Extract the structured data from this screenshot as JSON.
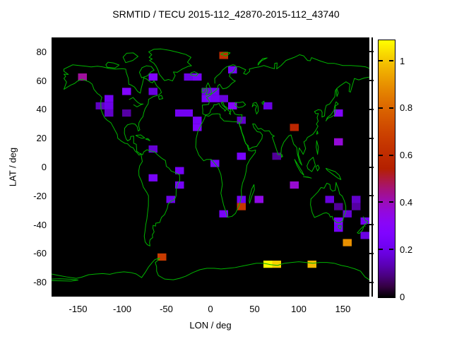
{
  "title": "SRMTID / TECU 2015-112_42870-2015-112_43740",
  "chart_data": {
    "type": "heatmap",
    "title": "SRMTID / TECU 2015-112_42870-2015-112_43740",
    "xlabel": "LON / deg",
    "ylabel": "LAT / deg",
    "xlim": [
      -180,
      180
    ],
    "ylim": [
      -90,
      90
    ],
    "xticks": [
      -150,
      -100,
      -50,
      0,
      50,
      100,
      150
    ],
    "yticks": [
      80,
      60,
      40,
      20,
      0,
      -20,
      -40,
      -60,
      -80
    ],
    "grid": false,
    "background_color": "#000000",
    "coastline_color": "#00b400",
    "cell_size": {
      "lon": 10,
      "lat": 5
    },
    "colorbar": {
      "min": 0,
      "max": 1.09,
      "ticks": [
        0,
        0.2,
        0.4,
        0.6,
        0.8,
        1
      ],
      "tick_labels": [
        "0",
        "0.2",
        "0.4",
        "0.6",
        "0.8",
        "1"
      ],
      "palette": "gnuplot pm3d rgbformulae 7,5,15 (black-purple-red-yellow)",
      "position": "right"
    },
    "points": [
      {
        "lon": -145,
        "lat": 62.5,
        "value": 0.43
      },
      {
        "lon": -65,
        "lat": 62.5,
        "value": 0.26
      },
      {
        "lon": -25,
        "lat": 62.5,
        "value": 0.2
      },
      {
        "lon": -15,
        "lat": 62.5,
        "value": 0.24
      },
      {
        "lon": -95,
        "lat": 52.5,
        "value": 0.28
      },
      {
        "lon": -65,
        "lat": 52.5,
        "value": 0.18
      },
      {
        "lon": -125,
        "lat": 42.5,
        "value": 0.15
      },
      {
        "lon": -115,
        "lat": 47.5,
        "value": 0.22
      },
      {
        "lon": -115,
        "lat": 42.5,
        "value": 0.2
      },
      {
        "lon": -115,
        "lat": 37.5,
        "value": 0.16
      },
      {
        "lon": -95,
        "lat": 37.5,
        "value": 0.12
      },
      {
        "lon": -65,
        "lat": 12.5,
        "value": 0.17
      },
      {
        "lon": 15,
        "lat": 77.5,
        "value": 0.61
      },
      {
        "lon": 25,
        "lat": 67.5,
        "value": 0.24
      },
      {
        "lon": -5,
        "lat": 52.5,
        "value": 0.18
      },
      {
        "lon": 5,
        "lat": 52.5,
        "value": 0.22
      },
      {
        "lon": -5,
        "lat": 47.5,
        "value": 0.25
      },
      {
        "lon": 5,
        "lat": 47.5,
        "value": 0.22
      },
      {
        "lon": 15,
        "lat": 47.5,
        "value": 0.18
      },
      {
        "lon": 25,
        "lat": 42.5,
        "value": 0.3
      },
      {
        "lon": -35,
        "lat": 37.5,
        "value": 0.22
      },
      {
        "lon": -25,
        "lat": 37.5,
        "value": 0.22
      },
      {
        "lon": -15,
        "lat": 32.5,
        "value": 0.24
      },
      {
        "lon": -15,
        "lat": 27.5,
        "value": 0.26
      },
      {
        "lon": 35,
        "lat": 32.5,
        "value": 0.16
      },
      {
        "lon": 35,
        "lat": 7.5,
        "value": 0.24
      },
      {
        "lon": 5,
        "lat": 2.5,
        "value": 0.24
      },
      {
        "lon": 65,
        "lat": 42.5,
        "value": 0.19
      },
      {
        "lon": 145,
        "lat": 37.5,
        "value": 0.28
      },
      {
        "lon": 95,
        "lat": 27.5,
        "value": 0.58
      },
      {
        "lon": 145,
        "lat": 17.5,
        "value": 0.37
      },
      {
        "lon": 75,
        "lat": 7.5,
        "value": 0.11
      },
      {
        "lon": -65,
        "lat": -7.5,
        "value": 0.24
      },
      {
        "lon": -35,
        "lat": -2.5,
        "value": 0.23
      },
      {
        "lon": -35,
        "lat": -12.5,
        "value": 0.23
      },
      {
        "lon": -45,
        "lat": -22.5,
        "value": 0.2
      },
      {
        "lon": 15,
        "lat": -32.5,
        "value": 0.25
      },
      {
        "lon": 35,
        "lat": -22.5,
        "value": 0.22
      },
      {
        "lon": 35,
        "lat": -27.5,
        "value": 0.65
      },
      {
        "lon": 55,
        "lat": -22.5,
        "value": 0.35
      },
      {
        "lon": -55,
        "lat": -62.5,
        "value": 0.67
      },
      {
        "lon": 95,
        "lat": -12.5,
        "value": 0.38
      },
      {
        "lon": 135,
        "lat": -22.5,
        "value": 0.18
      },
      {
        "lon": 145,
        "lat": -27.5,
        "value": 0.11
      },
      {
        "lon": 165,
        "lat": -22.5,
        "value": 0.16
      },
      {
        "lon": 165,
        "lat": -27.5,
        "value": 0.12
      },
      {
        "lon": 155,
        "lat": -32.5,
        "value": 0.17
      },
      {
        "lon": 145,
        "lat": -37.5,
        "value": 0.26
      },
      {
        "lon": 145,
        "lat": -42.5,
        "value": 0.23
      },
      {
        "lon": 175,
        "lat": -37.5,
        "value": 0.22
      },
      {
        "lon": 175,
        "lat": -47.5,
        "value": 0.19
      },
      {
        "lon": 155,
        "lat": -52.5,
        "value": 0.9
      },
      {
        "lon": 65,
        "lat": -67.5,
        "value": 1.08
      },
      {
        "lon": 75,
        "lat": -67.5,
        "value": 1.02
      },
      {
        "lon": 115,
        "lat": -67.5,
        "value": 0.98
      }
    ],
    "map_paths": [
      "M -166 68 L -156 71 -149 70.5 -141 70 -135 69.5 -128 70 -122 69.5 -115 68.5 -108 68 -100 68.3 -96 68 -95.5 66 -93 61.5 -92.5 57.5 -90 57 -86 55.5 -82.5 52.5 -79.5 51.3 -78.5 54.5 -77 58 -75.5 62 -72 61 -68 59 -65.5 58.5 -64 60 -61 56.5 -57 54 -55.5 51.8 -58.5 50 -64.5 49 -70 47 -70.5 44 -74 40.5 -75.5 37.8 -76.5 35 -79 33 -81 30.8 -81.3 28.5 -80 25.8 -81.8 25 -83 28 -85.5 29.8 -89 30.2 -94 29.3 -97.2 27 -97.5 23.5 -95.5 19.5 -93.8 18.2 -90.8 19.3 -90.3 21.2 -87 21.5 -87 16.5 -84 15.8 -83.5 11 -80.5 9.5 -78.8 9.3 -80.8 8.2 -83 9.8 -85.5 11.2 -87.5 13.3 -90.5 14 -94 16.2 -97 16.5 -101 18 -105 20 -105.5 22.5 -109 26.5 -112.5 30.5 -114.5 31.5 -117 32.5 -120 34.3 -122 36.8 -124 40 -124.2 43.5 -124 46.5 -123 48.3 -125.5 50 -128 51 -132 54 -134 57.5 -137 59 -141 60 -146 61 -151 59.5 -154 58 -158 57 -162 55.5 -166 54 -163 59 -166 61.5 -164 63 -166 64.5 -161 64.3 -166 66.5 Z",
      "M -78.8 9.2 L -77 8.5 -75.5 10.5 -72 12 -68 11.2 -63 10.5 -60 8.5 -55 6 -51 4.5 -50 0.5 -47 -0.8 -44.5 -2.8 -39.5 -4 -35 -5.5 -34.8 -9.5 -37 -11.5 -38.8 -15.5 -39 -20 -40.5 -22.5 -45 -23.8 -48 -25.8 -48.8 -28.5 -52 -33 -55.5 -35 -57.5 -38.5 -62 -39 -62.2 -41 -65 -40.5 -65.2 -42.5 -63.8 -45 -65.8 -47 -65.5 -49 -68.5 -50.5 -69 -52.5 -68.5 -54.8 -71.5 -54 -74 -52 -75 -48 -74 -44 -73.3 -40 -72 -36 -71.3 -32 -70.3 -27 -70.2 -20 -72 -17.8 -76 -14 -78 -10 -81 -6 -81.2 -2.5 -80.2 0.8 -77.2 3.8 Z",
      "M -58 64.5 L -52 60 -47.5 60.8 -43 59.8 -40 63.5 -42 66 -37.5 65.8 -32 68 -25 70 -21.5 70.3 -26 72.8 -22 76.2 -28 78.2 -36 79.5 -46 81 -56 82 -64 81.8 -70 80 -66.5 78 -69.5 76.2 -66 75 -69 74 -64 72 -61.5 70 -59.5 67.5 Z",
      "M -78 62 L -71.5 63.3 -67.5 66 -63.8 67.3 -67 69.8 -72.5 70.3 -77.5 69 -80.5 65.8 Z",
      "M -117 69.3 L -108 68.8 -103.5 70.8 -110 72.3 -116 72.8 -118.5 71 Z",
      "M -96 72.5 L -88 74 -82 76.8 -87.5 79.3 -95 79 -99 76.3 Z",
      "M -58 47 L -54 47.5 -55.5 49.8 -59 49 Z",
      "M -22.5 64 L -16 63.3 -13.8 64.8 -18 66.2 -22 65.5 Z",
      "M -84.5 22 L -79 22.3 -74.5 20.3 -78 20 -82 21 Z",
      "M -73.5 19.5 L -68.5 18.3 -71 19.8 Z",
      "M -92.2 46.8 L -87.7 48.3 -84.7 46.3 -82.2 44.8 -79.2 43.8 -76.2 43.8 -78.7 43.3 -83.2 41.8 -87.2 43.3",
      "M -5.5 36.1 L -8.8 37 -8.7 39.5 -9.3 43 -2 43.5 -1.2 45.8 -4.5 48.3 -1.5 49.3 1.5 50.8 4.2 52.2 8 54 8.5 56.5 10.5 57.5 12.5 55.5 14 54.3 18 54.8 21 56 24 58 28.2 59.8 25.5 60.5 21.5 63 22.5 65.3 25.5 66 29.5 69.8 33 69.5 40 67.5 37.5 65 40.5 64.3 44.5 66.5 44 68 50 69 55 69.5 60.5 70.5 68 69 72.5 68.3 72.8 72 75.5 72.3 75 68.2 80 70.5 85.5 74 95 76.2 101 78 105.5 77.2 110 74 113 73.8 114.5 76 125 73.5 133 72 140 72 150 70.5 159 70.5 170 70 176 69.5 180 68.5",
      "M 180 62.5 L 174 61.8 168 60.5 163 61.5 158.5 52 157 52.5 158 57.5 153.5 59.2 147 56.5 143 54.5 141.5 53 140.8 48.8 135 43.8 131.2 42.8 129.8 39.8 129.2 35.5 126.3 34.7 126.5 38 125.3 39.5 122 39.8 117.8 38.5 119.5 37 122.2 37.2 120.8 34.3 122 31.8 120 29.8 121.8 28.3 118.8 25 116 22.8 112.5 21.5 109.8 20.5 108.2 18.5 105.8 17.5 107.8 12.8 105 8.8 103.2 10.8 100.5 13.3 99.5 8.8 101 5.8 103.5 1.3 101 3.5 98.5 9 97.8 13.5 94.2 16 91.2 22.3 88.8 21.7 86.8 20.2 83 17.2 80.3 13.2 79.8 8.8 76.8 8.5 72.8 15.8 70 20.8 72.3 21.5 69.3 22.5 66.5 25.2 61.3 25 57.3 26.8 54 26.3 50.3 29.8 47.8 30 49.3 27.3 53 24.5 56.3 24.2 58.8 22.3 58.3 19.8 55.3 17 52.3 14.3 47.8 13.8 43.8 12.3 42.8 14.8 39.8 16.3 37.8 20.8 35.5 24.5 34.3 28.2 33.2 28.2 32.8 30 34.3 31.3 35.3 33.2 35.8 36.3 32.8 36.2 29.8 36.4 27.3 37 26.3 38.5 24 40.3 22.5 40 23.3 38.8 21.3 37.2 22.8 36.5 21.8 38.5 19.8 39.5 18.8 41.3 15.8 42.3 13.8 45.3 12.3 44.5 13.8 42.8 15.8 41.8 18.3 40.3 16.3 38.8 15.6 40.1 12.8 41.3 10.8 42.6 9.8 44.1 7.8 43.7 6.3 43.2 4 43.3 3.2 41.7 0.2 39.7 -0.5 37.8 -2.2 36.7 -5.5 36.1",
      "M 5 58 L 4.8 61.5 7 63 11 65 14 67.5 18 69.5 22 70.3 25.5 71 28.5 70.5",
      "M -5.8 35.8 L -2 35.3 2 36.8 8 37 10.8 36.8 11.2 34.5 15.3 32 20 31.8 25 31.5 30 31.3 32.3 31.1 32.5 29.8 33.8 27.5 35.8 23.5 37.3 20.8 38.8 17.8 41.8 14.8 43.2 11.5 46.8 11.1 51.1 11.8 50.8 10.1 44.3 4.8 41.3 1.3 40.3 -3.2 38.8 -7.2 36.3 -11.2 34.8 -16.2 35.3 -20.2 32.8 -26.2 28.3 -32.2 24.3 -34.3 19.3 -34.8 17.8 -31.7 14.8 -26.2 11.8 -18.2 13.5 -12.2 11.8 -5.2 8.8 -0.7 5.8 1.8 0.8 5.3 -4.2 5.3 -7.7 4.3 -13.2 8.3 -16.7 13.8 -16.2 19.8 -14.2 24.8 -9.7 30.3 -6.7 33.8 Z",
      "M 44.3 -25.2 L 46.8 -20.2 49.8 -15.7 49.3 -12.2 46.8 -15.2 44.8 -19.7 43.8 -23.2 Z",
      "M -5.2 50 L -3.2 53.3 -4.8 56 -2.8 58.5 -1.2 56.5 0.8 53 1.2 51.2 -2.2 50.5 Z",
      "M -9.8 51.8 L -6.2 52.2 -5.8 54.8 -9.8 54.2 Z",
      "M 11.8 78.3 L 16.8 79.8 22.3 79.3 17.8 77 Z",
      "M 53.8 70.8 L 57.8 73.8 64.3 75.8 59.3 75.3 54.3 72.3 Z",
      "M 144.8 43.8 L 141.3 42.3 141.8 39.3 140.3 36 136.8 34.8 132.8 33.8 130.8 32 132.3 34.3 136.3 36.2 139.8 39.2 140.8 42.3 142.3 45.3 Z",
      "M 142.3 53.8 L 143.3 49 144.8 51.5 143.2 54.3 Z",
      "M 121 25 L 121.8 23.3 120.3 22.8 Z",
      "M 120.3 18.3 L 122.3 13.8 121.3 8.8 119.8 13.8 Z",
      "M 95.3 5.3 L 99.8 0.8 103.8 -3.2 105.8 -5.7 102.3 -3.7 97.8 1.3 Z",
      "M 105.3 -6.7 L 110.8 -7.2 114.3 -7.7 110.3 -6.9 Z",
      "M 109.3 0.8 L 111.8 4.3 116.3 6.8 118.8 1.3 114.8 -3.2 110.3 -1.2 Z",
      "M 119.3 0.3 L 121.3 -2.7 123.3 -0.7 121.8 1.3 Z",
      "M 130.8 -0.9 L 136.3 -2.2 141.3 -3.2 145.8 -5.7 147.8 -8.7 144.3 -7.7 137.8 -4.7 132.3 -2.2 Z",
      "M 80.8 8.8 L 81.8 7.3 80.3 6.8 Z",
      "M 142.3 -10.7 L 141.3 -16.2 138.3 -16.7 135.8 -15.2 135.3 -12.2 131.8 -11.2 128.8 -14.7 125.3 -14.2 121.8 -17.2 116.3 -20.7 113.8 -22.2 113.3 -26.2 115.3 -31.7 117.8 -35 122.3 -33.9 127.8 -32.2 131.3 -31.7 134.3 -32.7 135.8 -34.7 137.8 -34.2 139.3 -36.7 143.3 -38.7 146.3 -38.7 149.8 -37.5 151.3 -33.7 153.3 -30.7 153.3 -27.2 151.8 -23.7 149.3 -20.2 146.3 -18.7 144.8 -14.7 143.3 -12.7 Z",
      "M 144.8 -40.7 L 148.3 -40.9 147.3 -43.2 144.9 -42 Z",
      "M 172.8 -34.4 L 175.8 -37.2 178.3 -37.7 177.3 -39.2 174.3 -39.7 175.3 -41.4",
      "M 173.8 -40.9 L 172.3 -43.7 168.3 -46.2 166.3 -45.7 170.3 -42.9 Z",
      "M 48.3 44.3 L 51.8 44.8 53.8 42.3 54.3 38.8 52.3 36.8 50.8 39.8 52.3 42.3 49.3 43.3 47.3 41.8 Z",
      "M 28.3 44.8 L 33.3 44.8 36.8 45.3 39.8 43.3 36.3 41.8 31.8 41.3 27.8 42.8 Z",
      "M 58.3 44.8 L 60.8 45.8 60.3 43.8 58.8 43.8 Z",
      "M -180 -74.3 L -172 -75.3 -163 -76.3 -152 -77.3 -146 -76.5 -138 -74.8 -130 -74.3 -122 -74 -114 -74.5 -106 -73.3 -98 -72.8 -90 -73.3 -84 -74.3 -78 -76.8 -74 -73.3 -70 -69.3 -66 -66.3 -63 -64.3 -57.5 -63.2 -59.5 -64.8 -62.5 -66.3 -61 -69.3 -61 -72.3 -59 -75.3 -52 -77.8 -42 -78.3 -35 -77.3 -28 -75.8 -20 -73.3 -12 -71.3 -4 -70.3 4 -70.3 12 -70.8 20 -70.3 28 -69.8 36 -68.8 44 -67.8 52 -66.8 60 -66.8 68 -67.8 76 -68.3 84 -66.8 92 -66.3 100 -65.8 108 -66.3 116 -66.8 124 -66.3 132 -66.3 140 -66.8 148 -68.3 156 -69.3 164 -70.8 170 -72.3 175 -76.3 180 -78.3",
      "M -180 -77.8 L -170 -77.6 -158 -77.9 -150 -78.5 -158 -79.2 -170 -79 -180 -78.9"
    ]
  }
}
